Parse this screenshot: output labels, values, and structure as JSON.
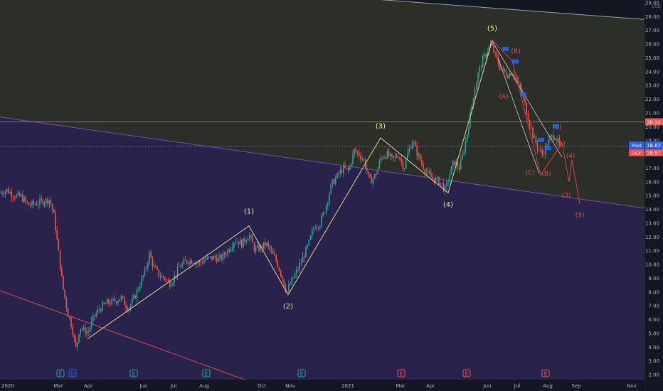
{
  "chart_data": {
    "type": "candlestick",
    "currency": "USD",
    "ylim": [
      2,
      29
    ],
    "y_ticks": [
      "29.00",
      "28.00",
      "27.00",
      "26.00",
      "25.00",
      "24.00",
      "23.00",
      "22.00",
      "21.00",
      "20.00",
      "19.00",
      "18.00",
      "17.00",
      "16.00",
      "15.00",
      "14.00",
      "13.00",
      "12.00",
      "11.00",
      "10.00",
      "9.00",
      "8.00",
      "7.00",
      "6.00",
      "5.00",
      "4.00",
      "3.00",
      "2.00"
    ],
    "x_ticks": [
      "2020",
      "Mar",
      "Apr",
      "Jun",
      "Jul",
      "Aug",
      "Oct",
      "Nov",
      "2021",
      "Mar",
      "Apr",
      "Jun",
      "Jul",
      "Aug",
      "Sep",
      "Nov"
    ],
    "price_labels": [
      {
        "name": "red-level",
        "text": "20.36",
        "value": 20.36,
        "color": "#ef5350"
      },
      {
        "name": "post",
        "text": "Post",
        "value": 18.67,
        "color": "#2962ff"
      },
      {
        "name": "post-value",
        "text": "18.67",
        "value": 18.67,
        "color": "#2962ff"
      },
      {
        "name": "bgy",
        "text": "BGY",
        "value": 18.57,
        "color": "#ef5350"
      },
      {
        "name": "bgy-value",
        "text": "18.57",
        "value": 18.57,
        "color": "#ef5350"
      }
    ],
    "horizontal_levels": [
      20.36,
      18.57
    ],
    "price_path": [
      [
        0,
        15.2
      ],
      [
        10,
        15.4
      ],
      [
        20,
        15.0
      ],
      [
        30,
        14.9
      ],
      [
        40,
        14.3
      ],
      [
        50,
        14.4
      ],
      [
        60,
        14.6
      ],
      [
        70,
        14.7
      ],
      [
        76,
        13.5
      ],
      [
        82,
        11.0
      ],
      [
        88,
        8.5
      ],
      [
        95,
        6.5
      ],
      [
        101,
        5.5
      ],
      [
        107,
        3.8
      ],
      [
        112,
        5.5
      ],
      [
        118,
        5.2
      ],
      [
        124,
        5.1
      ],
      [
        132,
        6.2
      ],
      [
        140,
        6.8
      ],
      [
        150,
        7.2
      ],
      [
        160,
        7.3
      ],
      [
        170,
        7.6
      ],
      [
        180,
        6.8
      ],
      [
        188,
        7.5
      ],
      [
        196,
        8.5
      ],
      [
        204,
        9.5
      ],
      [
        210,
        10.8
      ],
      [
        216,
        9.8
      ],
      [
        224,
        9.2
      ],
      [
        232,
        9.0
      ],
      [
        238,
        8.6
      ],
      [
        244,
        9.0
      ],
      [
        252,
        9.8
      ],
      [
        260,
        10.2
      ],
      [
        270,
        10.3
      ],
      [
        280,
        10.1
      ],
      [
        290,
        10.4
      ],
      [
        300,
        10.5
      ],
      [
        310,
        10.4
      ],
      [
        320,
        11.0
      ],
      [
        330,
        11.8
      ],
      [
        340,
        11.5
      ],
      [
        350,
        12.2
      ],
      [
        358,
        11.1
      ],
      [
        366,
        11.2
      ],
      [
        374,
        11.5
      ],
      [
        380,
        11.0
      ],
      [
        388,
        10.3
      ],
      [
        396,
        9.2
      ],
      [
        403,
        8.0
      ],
      [
        410,
        8.8
      ],
      [
        418,
        9.6
      ],
      [
        426,
        10.5
      ],
      [
        434,
        11.5
      ],
      [
        442,
        12.8
      ],
      [
        450,
        13.0
      ],
      [
        458,
        14.2
      ],
      [
        466,
        15.8
      ],
      [
        474,
        16.4
      ],
      [
        482,
        17.0
      ],
      [
        490,
        16.8
      ],
      [
        498,
        18.3
      ],
      [
        505,
        18.0
      ],
      [
        512,
        17.5
      ],
      [
        520,
        16.0
      ],
      [
        528,
        16.5
      ],
      [
        536,
        17.8
      ],
      [
        544,
        18.0
      ],
      [
        552,
        17.6
      ],
      [
        560,
        18.0
      ],
      [
        568,
        17.0
      ],
      [
        574,
        18.2
      ],
      [
        580,
        19.0
      ],
      [
        587,
        18.0
      ],
      [
        594,
        17.2
      ],
      [
        602,
        16.5
      ],
      [
        610,
        16.2
      ],
      [
        618,
        16.0
      ],
      [
        626,
        15.4
      ],
      [
        632,
        16.5
      ],
      [
        638,
        17.5
      ],
      [
        646,
        17.0
      ],
      [
        654,
        18.8
      ],
      [
        660,
        20.5
      ],
      [
        666,
        22.5
      ],
      [
        672,
        23.8
      ],
      [
        678,
        24.8
      ],
      [
        684,
        25.4
      ],
      [
        690,
        26.0
      ],
      [
        696,
        25.2
      ],
      [
        702,
        24.4
      ],
      [
        708,
        24.0
      ],
      [
        714,
        23.8
      ],
      [
        720,
        24.0
      ],
      [
        726,
        23.4
      ],
      [
        732,
        22.6
      ],
      [
        738,
        21.6
      ],
      [
        744,
        20.4
      ],
      [
        750,
        19.2
      ],
      [
        756,
        18.5
      ],
      [
        762,
        18.0
      ],
      [
        768,
        18.6
      ],
      [
        774,
        19.2
      ],
      [
        780,
        19.4
      ],
      [
        786,
        18.7
      ],
      [
        790,
        18.3
      ]
    ],
    "channel_lines": [
      {
        "name": "upper-channel",
        "from": [
          0,
          31.3
        ],
        "to": [
          905,
          27.8
        ],
        "color": "#b2b5be"
      },
      {
        "name": "lower-channel",
        "from": [
          0,
          20.7
        ],
        "to": [
          905,
          14.1
        ],
        "color": "#7e57c2"
      },
      {
        "name": "red-trendline",
        "from": [
          0,
          8.1
        ],
        "to": [
          378,
          1.0
        ],
        "color": "#ef5350"
      }
    ],
    "waves_yellow": [
      {
        "label": "(1)",
        "x": 350,
        "y": 12.8,
        "label_y": 13.9
      },
      {
        "label": "(2)",
        "x": 405,
        "y": 7.8,
        "label_y": 7.0
      },
      {
        "label": "(3)",
        "x": 535,
        "y": 19.2,
        "label_y": 20.1
      },
      {
        "label": "(4)",
        "x": 630,
        "y": 15.2,
        "label_y": 14.4
      },
      {
        "label": "(5)",
        "x": 692,
        "y": 26.3,
        "label_y": 27.2
      }
    ],
    "wave_path_yellow": [
      [
        123,
        4.6
      ],
      [
        350,
        12.8
      ],
      [
        405,
        7.8
      ],
      [
        535,
        19.2
      ],
      [
        630,
        15.2
      ],
      [
        692,
        26.3
      ]
    ],
    "waves_red": [
      {
        "label": "(B)",
        "x": 725,
        "y": 25.5
      },
      {
        "label": "(A)",
        "x": 708,
        "y": 22.2
      },
      {
        "label": "(C)",
        "x": 745,
        "y": 16.7
      },
      {
        "label": "(C)",
        "x": 783,
        "y": 20.0
      },
      {
        "label": "(B)",
        "x": 768,
        "y": 16.6
      },
      {
        "label": "(A)",
        "x": 788,
        "y": 18.8
      },
      {
        "label": "(4)",
        "x": 802,
        "y": 17.9
      },
      {
        "label": "(3)",
        "x": 796,
        "y": 15.0
      },
      {
        "label": "(5)",
        "x": 815,
        "y": 13.6
      }
    ],
    "wave_path_red": [
      [
        692,
        26.3
      ],
      [
        720,
        24.8
      ],
      [
        760,
        16.5
      ],
      [
        790,
        18.8
      ],
      [
        800,
        16.0
      ],
      [
        804,
        17.6
      ],
      [
        815,
        14.4
      ]
    ],
    "wedge_lines": [
      {
        "from": [
          692,
          26.2
        ],
        "to": [
          790,
          17.8
        ]
      },
      {
        "from": [
          700,
          25.0
        ],
        "to": [
          758,
          16.6
        ]
      }
    ],
    "event_markers": [
      {
        "label": "E",
        "x": 85,
        "kind": "earnings-green"
      },
      {
        "label": "D",
        "x": 102,
        "kind": "dividend-blue"
      },
      {
        "label": "E",
        "x": 188,
        "kind": "earnings-green"
      },
      {
        "label": "E",
        "x": 290,
        "kind": "earnings-green"
      },
      {
        "label": "E",
        "x": 424,
        "kind": "earnings-green"
      },
      {
        "label": "E",
        "x": 564,
        "kind": "earnings-red"
      },
      {
        "label": "E",
        "x": 656,
        "kind": "earnings-red"
      },
      {
        "label": "E",
        "x": 767,
        "kind": "earnings-red"
      }
    ]
  }
}
